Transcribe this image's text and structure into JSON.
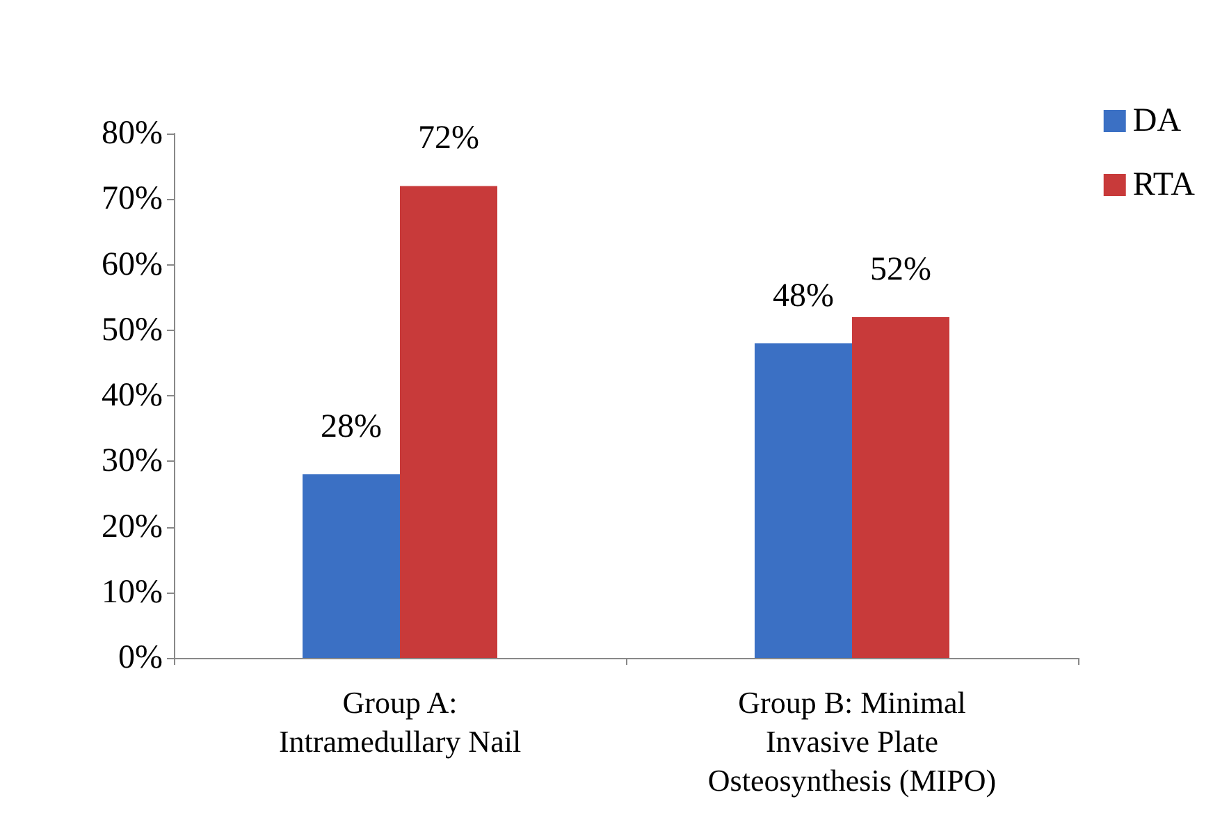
{
  "chart_data": {
    "type": "bar",
    "categories": [
      "Group A:\nIntramedullary Nail",
      "Group B: Minimal\nInvasive Plate\nOsteosynthesis (MIPO)"
    ],
    "series": [
      {
        "name": "DA",
        "color": "#3b70c4",
        "values": [
          28,
          48
        ],
        "value_labels": [
          "28%",
          "48%"
        ]
      },
      {
        "name": "RTA",
        "color": "#c83a3a",
        "values": [
          72,
          52
        ],
        "value_labels": [
          "72%",
          "52%"
        ]
      }
    ],
    "ylim": [
      0,
      80
    ],
    "yticks": [
      {
        "value": 0,
        "label": "0%"
      },
      {
        "value": 10,
        "label": "10%"
      },
      {
        "value": 20,
        "label": "20%"
      },
      {
        "value": 30,
        "label": "30%"
      },
      {
        "value": 40,
        "label": "40%"
      },
      {
        "value": 50,
        "label": "50%"
      },
      {
        "value": 60,
        "label": "60%"
      },
      {
        "value": 70,
        "label": "70%"
      },
      {
        "value": 80,
        "label": "80%"
      }
    ],
    "grid": false,
    "legend": "top right"
  }
}
